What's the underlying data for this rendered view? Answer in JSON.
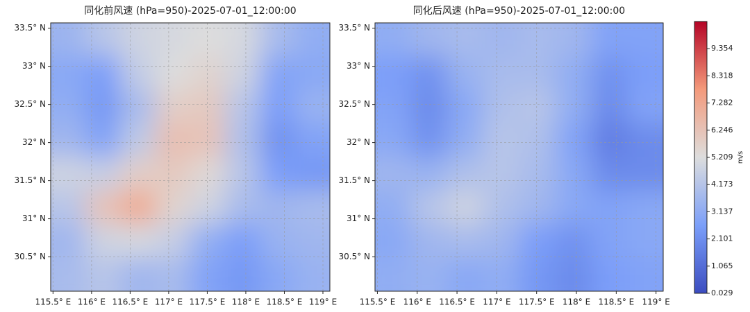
{
  "chart_data": [
    {
      "type": "heatmap",
      "title": "同化前风速 (hPa=950)-2025-07-01_12:00:00",
      "xlim": [
        115.47,
        119.09
      ],
      "ylim": [
        30.05,
        33.57
      ],
      "xticks": [
        {
          "value": 115.5,
          "label": "115.5° E"
        },
        {
          "value": 116,
          "label": "116° E"
        },
        {
          "value": 116.5,
          "label": "116.5° E"
        },
        {
          "value": 117,
          "label": "117° E"
        },
        {
          "value": 117.5,
          "label": "117.5° E"
        },
        {
          "value": 118,
          "label": "118° E"
        },
        {
          "value": 118.5,
          "label": "118.5° E"
        },
        {
          "value": 119,
          "label": "119° E"
        }
      ],
      "yticks": [
        {
          "value": 30.5,
          "label": "30.5° N"
        },
        {
          "value": 31,
          "label": "31° N"
        },
        {
          "value": 31.5,
          "label": "31.5° N"
        },
        {
          "value": 32,
          "label": "32° N"
        },
        {
          "value": 32.5,
          "label": "32.5° N"
        },
        {
          "value": 33,
          "label": "33° N"
        },
        {
          "value": 33.5,
          "label": "33.5° N"
        }
      ],
      "grid": true,
      "values": [
        [
          3.5,
          4.2,
          4.8,
          5.0,
          5.2,
          5.0,
          3.8,
          3.2
        ],
        [
          3.0,
          2.6,
          4.5,
          5.2,
          5.6,
          4.8,
          2.8,
          3.0
        ],
        [
          3.2,
          2.4,
          3.8,
          5.8,
          6.0,
          4.2,
          2.6,
          3.4
        ],
        [
          3.6,
          2.8,
          4.4,
          6.4,
          6.2,
          4.0,
          2.2,
          2.8
        ],
        [
          4.8,
          4.6,
          5.8,
          6.0,
          5.4,
          4.2,
          2.6,
          2.4
        ],
        [
          4.2,
          6.2,
          7.2,
          5.6,
          4.8,
          3.8,
          3.6,
          3.8
        ],
        [
          3.6,
          4.8,
          5.0,
          4.6,
          3.2,
          2.6,
          3.4,
          3.6
        ],
        [
          3.8,
          4.2,
          3.6,
          3.8,
          2.8,
          2.4,
          3.0,
          3.4
        ]
      ]
    },
    {
      "type": "heatmap",
      "title": "同化后风速 (hPa=950)-2025-07-01_12:00:00",
      "xlim": [
        115.47,
        119.09
      ],
      "ylim": [
        30.05,
        33.57
      ],
      "xticks": [
        {
          "value": 115.5,
          "label": "115.5° E"
        },
        {
          "value": 116,
          "label": "116° E"
        },
        {
          "value": 116.5,
          "label": "116.5° E"
        },
        {
          "value": 117,
          "label": "117° E"
        },
        {
          "value": 117.5,
          "label": "117.5° E"
        },
        {
          "value": 118,
          "label": "118° E"
        },
        {
          "value": 118.5,
          "label": "118.5° E"
        },
        {
          "value": 119,
          "label": "119° E"
        }
      ],
      "yticks": [
        {
          "value": 30.5,
          "label": "30.5° N"
        },
        {
          "value": 31,
          "label": "31° N"
        },
        {
          "value": 31.5,
          "label": "31.5° N"
        },
        {
          "value": 32,
          "label": "32° N"
        },
        {
          "value": 32.5,
          "label": "32.5° N"
        },
        {
          "value": 33,
          "label": "33° N"
        },
        {
          "value": 33.5,
          "label": "33.5° N"
        }
      ],
      "grid": true,
      "values": [
        [
          3.2,
          3.6,
          3.8,
          3.6,
          3.8,
          3.6,
          2.8,
          2.8
        ],
        [
          2.6,
          2.2,
          3.4,
          3.8,
          3.8,
          3.2,
          2.2,
          2.6
        ],
        [
          2.8,
          2.0,
          3.0,
          4.0,
          4.2,
          3.2,
          2.0,
          2.8
        ],
        [
          3.0,
          2.2,
          3.2,
          4.2,
          4.0,
          2.8,
          1.6,
          2.0
        ],
        [
          3.6,
          3.4,
          4.0,
          4.2,
          3.8,
          3.0,
          2.0,
          2.0
        ],
        [
          3.2,
          4.2,
          4.8,
          4.0,
          3.6,
          3.0,
          2.8,
          3.0
        ],
        [
          3.0,
          3.6,
          3.8,
          3.6,
          2.6,
          2.2,
          2.8,
          3.0
        ],
        [
          3.2,
          3.4,
          3.0,
          3.2,
          2.4,
          2.0,
          2.6,
          2.8
        ]
      ]
    }
  ],
  "colorbar": {
    "label": "m/s",
    "colormap": "coolwarm",
    "lim": [
      0.029,
      10.39
    ],
    "ticks": [
      0.029,
      1.065,
      2.101,
      3.137,
      4.173,
      5.209,
      6.246,
      7.282,
      8.318,
      9.354
    ]
  }
}
